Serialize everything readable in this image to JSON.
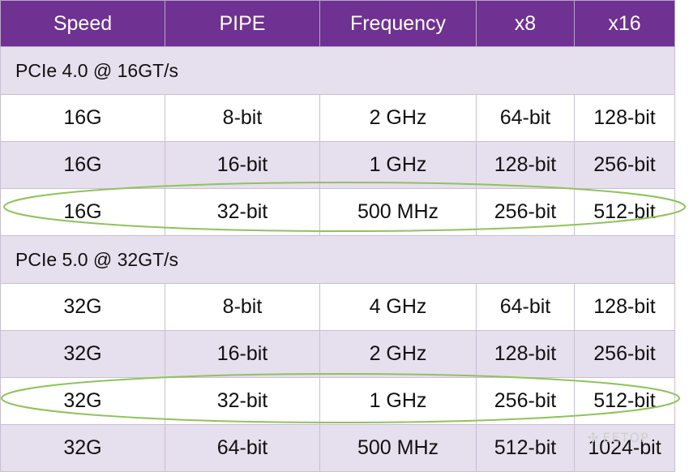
{
  "colors": {
    "header_bg": "#6f3192",
    "shade_row": "#e6dfed",
    "highlight_ellipse": "#8fc35a"
  },
  "table": {
    "headers": [
      "Speed",
      "PIPE",
      "Frequency",
      "x8",
      "x16"
    ],
    "sections": [
      {
        "title": "PCIe 4.0 @ 16GT/s",
        "rows": [
          [
            "16G",
            "8-bit",
            "2 GHz",
            "64-bit",
            "128-bit"
          ],
          [
            "16G",
            "16-bit",
            "1 GHz",
            "128-bit",
            "256-bit"
          ],
          [
            "16G",
            "32-bit",
            "500 MHz",
            "256-bit",
            "512-bit"
          ]
        ],
        "highlighted_row": 2
      },
      {
        "title": "PCIe 5.0 @ 32GT/s",
        "rows": [
          [
            "32G",
            "8-bit",
            "4 GHz",
            "64-bit",
            "128-bit"
          ],
          [
            "32G",
            "16-bit",
            "2 GHz",
            "128-bit",
            "256-bit"
          ],
          [
            "32G",
            "32-bit",
            "1 GHz",
            "256-bit",
            "512-bit"
          ],
          [
            "32G",
            "64-bit",
            "500 MHz",
            "512-bit",
            "1024-bit"
          ]
        ],
        "highlighted_row": 2
      }
    ]
  },
  "watermark": {
    "text": "EETOP",
    "icon": "wechat-icon"
  }
}
